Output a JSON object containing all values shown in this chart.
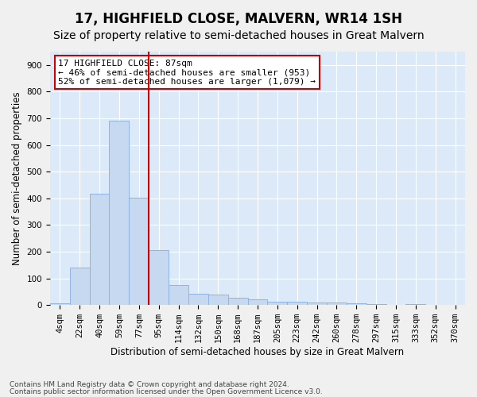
{
  "title": "17, HIGHFIELD CLOSE, MALVERN, WR14 1SH",
  "subtitle": "Size of property relative to semi-detached houses in Great Malvern",
  "xlabel": "Distribution of semi-detached houses by size in Great Malvern",
  "ylabel": "Number of semi-detached properties",
  "footnote1": "Contains HM Land Registry data © Crown copyright and database right 2024.",
  "footnote2": "Contains public sector information licensed under the Open Government Licence v3.0.",
  "bar_labels": [
    "4sqm",
    "22sqm",
    "40sqm",
    "59sqm",
    "77sqm",
    "95sqm",
    "114sqm",
    "132sqm",
    "150sqm",
    "168sqm",
    "187sqm",
    "205sqm",
    "223sqm",
    "242sqm",
    "260sqm",
    "278sqm",
    "297sqm",
    "315sqm",
    "333sqm",
    "352sqm",
    "370sqm"
  ],
  "bar_values": [
    7,
    140,
    418,
    690,
    402,
    207,
    74,
    42,
    39,
    28,
    22,
    13,
    13,
    11,
    11,
    7,
    5,
    0,
    5,
    0,
    0
  ],
  "bar_color": "#c6d9f1",
  "bar_edge_color": "#8db4e3",
  "vline_x_index": 4.5,
  "ylim": [
    0,
    950
  ],
  "yticks": [
    0,
    100,
    200,
    300,
    400,
    500,
    600,
    700,
    800,
    900
  ],
  "background_color": "#dce9f8",
  "grid_color": "#ffffff",
  "vline_color": "#cc0000",
  "box_edge_color": "#cc0000",
  "title_fontsize": 12,
  "subtitle_fontsize": 10,
  "axis_label_fontsize": 8.5,
  "tick_fontsize": 7.5,
  "annotation_fontsize": 8,
  "footnote_fontsize": 6.5
}
